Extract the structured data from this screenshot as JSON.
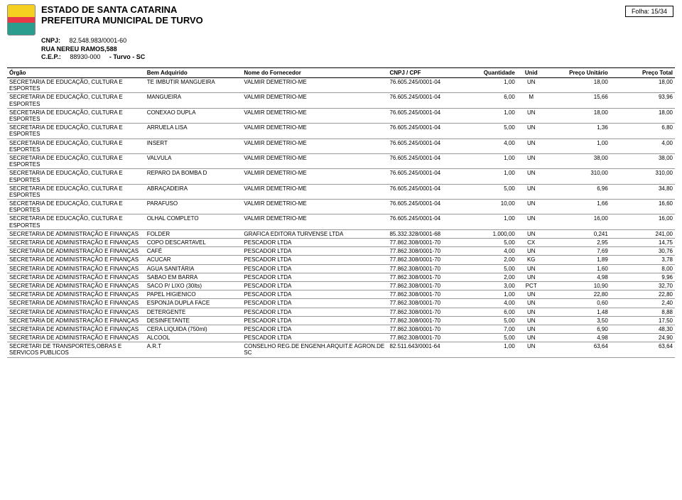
{
  "header": {
    "estado": "ESTADO DE SANTA CATARINA",
    "prefeitura": "PREFEITURA MUNICIPAL DE TURVO",
    "cnpj_label": "CNPJ:",
    "cnpj": "82.548.983/0001-60",
    "rua": "RUA NEREU RAMOS,588",
    "cep_label": "C.E.P.:",
    "cep": "88930-000",
    "cidade": "- Turvo - SC",
    "folha_label": "Folha:",
    "folha": "15/34"
  },
  "columns": {
    "orgao": "Órgão",
    "bem": "Bem Adquirido",
    "fornecedor": "Nome do Fornecedor",
    "cnpj": "CNPJ / CPF",
    "qtd": "Quantidade",
    "unid": "Unid",
    "pu": "Preço Unitário",
    "pt": "Preço Total"
  },
  "rows": [
    {
      "orgao": "SECRETARIA DE EDUCAÇÃO, CULTURA E ESPORTES",
      "bem": "TE IMBUTIR MANGUEIRA",
      "forn": "VALMIR DEMETRIO-ME",
      "cnpj": "76.605.245/0001-04",
      "qtd": "1,00",
      "unid": "UN",
      "pu": "18,00",
      "pt": "18,00"
    },
    {
      "orgao": "SECRETARIA DE EDUCAÇÃO, CULTURA E ESPORTES",
      "bem": "MANGUEIRA",
      "forn": "VALMIR DEMETRIO-ME",
      "cnpj": "76.605.245/0001-04",
      "qtd": "6,00",
      "unid": "M",
      "pu": "15,66",
      "pt": "93,96"
    },
    {
      "orgao": "SECRETARIA DE EDUCAÇÃO, CULTURA E ESPORTES",
      "bem": "CONEXAO DUPLA",
      "forn": "VALMIR DEMETRIO-ME",
      "cnpj": "76.605.245/0001-04",
      "qtd": "1,00",
      "unid": "UN",
      "pu": "18,00",
      "pt": "18,00"
    },
    {
      "orgao": "SECRETARIA DE EDUCAÇÃO, CULTURA E ESPORTES",
      "bem": "ARRUELA LISA",
      "forn": "VALMIR DEMETRIO-ME",
      "cnpj": "76.605.245/0001-04",
      "qtd": "5,00",
      "unid": "UN",
      "pu": "1,36",
      "pt": "6,80"
    },
    {
      "orgao": "SECRETARIA DE EDUCAÇÃO, CULTURA E ESPORTES",
      "bem": "INSERT",
      "forn": "VALMIR DEMETRIO-ME",
      "cnpj": "76.605.245/0001-04",
      "qtd": "4,00",
      "unid": "UN",
      "pu": "1,00",
      "pt": "4,00"
    },
    {
      "orgao": "SECRETARIA DE EDUCAÇÃO, CULTURA E ESPORTES",
      "bem": "VALVULA",
      "forn": "VALMIR DEMETRIO-ME",
      "cnpj": "76.605.245/0001-04",
      "qtd": "1,00",
      "unid": "UN",
      "pu": "38,00",
      "pt": "38,00"
    },
    {
      "orgao": "SECRETARIA DE EDUCAÇÃO, CULTURA E ESPORTES",
      "bem": "REPARO  DA BOMBA D",
      "forn": "VALMIR DEMETRIO-ME",
      "cnpj": "76.605.245/0001-04",
      "qtd": "1,00",
      "unid": "UN",
      "pu": "310,00",
      "pt": "310,00"
    },
    {
      "orgao": "SECRETARIA DE EDUCAÇÃO, CULTURA E ESPORTES",
      "bem": "ABRAÇADEIRA",
      "forn": "VALMIR DEMETRIO-ME",
      "cnpj": "76.605.245/0001-04",
      "qtd": "5,00",
      "unid": "UN",
      "pu": "6,96",
      "pt": "34,80"
    },
    {
      "orgao": "SECRETARIA DE EDUCAÇÃO, CULTURA E ESPORTES",
      "bem": "PARAFUSO",
      "forn": "VALMIR DEMETRIO-ME",
      "cnpj": "76.605.245/0001-04",
      "qtd": "10,00",
      "unid": "UN",
      "pu": "1,66",
      "pt": "16,60"
    },
    {
      "orgao": "SECRETARIA DE EDUCAÇÃO, CULTURA E ESPORTES",
      "bem": "OLHAL COMPLETO",
      "forn": "VALMIR DEMETRIO-ME",
      "cnpj": "76.605.245/0001-04",
      "qtd": "1,00",
      "unid": "UN",
      "pu": "16,00",
      "pt": "16,00"
    },
    {
      "orgao": "SECRETARIA DE ADMINISTRAÇÃO E FINANÇAS",
      "bem": "FOLDER",
      "forn": "GRAFICA EDITORA TURVENSE LTDA",
      "cnpj": "85.332.328/0001-68",
      "qtd": "1.000,00",
      "unid": "UN",
      "pu": "0,241",
      "pt": "241,00"
    },
    {
      "orgao": "SECRETARIA DE ADMINISTRAÇÃO E FINANÇAS",
      "bem": "COPO DESCARTAVEL",
      "forn": "PESCADOR LTDA",
      "cnpj": "77.862.308/0001-70",
      "qtd": "5,00",
      "unid": "CX",
      "pu": "2,95",
      "pt": "14,75"
    },
    {
      "orgao": "SECRETARIA DE ADMINISTRAÇÃO E FINANÇAS",
      "bem": "CAFÉ",
      "forn": "PESCADOR LTDA",
      "cnpj": "77.862.308/0001-70",
      "qtd": "4,00",
      "unid": "UN",
      "pu": "7,69",
      "pt": "30,76"
    },
    {
      "orgao": "SECRETARIA DE ADMINISTRAÇÃO E FINANÇAS",
      "bem": "ACUCAR",
      "forn": "PESCADOR LTDA",
      "cnpj": "77.862.308/0001-70",
      "qtd": "2,00",
      "unid": "KG",
      "pu": "1,89",
      "pt": "3,78"
    },
    {
      "orgao": "SECRETARIA DE ADMINISTRAÇÃO E FINANÇAS",
      "bem": "AGUA SANITÁRIA",
      "forn": "PESCADOR LTDA",
      "cnpj": "77.862.308/0001-70",
      "qtd": "5,00",
      "unid": "UN",
      "pu": "1,60",
      "pt": "8,00"
    },
    {
      "orgao": "SECRETARIA DE ADMINISTRAÇÃO E FINANÇAS",
      "bem": "SABAO EM BARRA",
      "forn": "PESCADOR LTDA",
      "cnpj": "77.862.308/0001-70",
      "qtd": "2,00",
      "unid": "UN",
      "pu": "4,98",
      "pt": "9,96"
    },
    {
      "orgao": "SECRETARIA DE ADMINISTRAÇÃO E FINANÇAS",
      "bem": "SACO P/ LIXO (30lts)",
      "forn": "PESCADOR LTDA",
      "cnpj": "77.862.308/0001-70",
      "qtd": "3,00",
      "unid": "PCT",
      "pu": "10,90",
      "pt": "32,70"
    },
    {
      "orgao": "SECRETARIA DE ADMINISTRAÇÃO E FINANÇAS",
      "bem": "PAPEL HIGIENICO",
      "forn": "PESCADOR LTDA",
      "cnpj": "77.862.308/0001-70",
      "qtd": "1,00",
      "unid": "UN",
      "pu": "22,80",
      "pt": "22,80"
    },
    {
      "orgao": "SECRETARIA DE ADMINISTRAÇÃO E FINANÇAS",
      "bem": "ESPONJA DUPLA FACE",
      "forn": "PESCADOR LTDA",
      "cnpj": "77.862.308/0001-70",
      "qtd": "4,00",
      "unid": "UN",
      "pu": "0,60",
      "pt": "2,40"
    },
    {
      "orgao": "SECRETARIA DE ADMINISTRAÇÃO E FINANÇAS",
      "bem": "DETERGENTE",
      "forn": "PESCADOR LTDA",
      "cnpj": "77.862.308/0001-70",
      "qtd": "6,00",
      "unid": "UN",
      "pu": "1,48",
      "pt": "8,88"
    },
    {
      "orgao": "SECRETARIA DE ADMINISTRAÇÃO E FINANÇAS",
      "bem": "DESINFETANTE",
      "forn": "PESCADOR LTDA",
      "cnpj": "77.862.308/0001-70",
      "qtd": "5,00",
      "unid": "UN",
      "pu": "3,50",
      "pt": "17,50"
    },
    {
      "orgao": "SECRETARIA DE ADMINISTRAÇÃO E FINANÇAS",
      "bem": "CERA LIQUIDA (750ml)",
      "forn": "PESCADOR LTDA",
      "cnpj": "77.862.308/0001-70",
      "qtd": "7,00",
      "unid": "UN",
      "pu": "6,90",
      "pt": "48,30"
    },
    {
      "orgao": "SECRETARIA DE ADMINISTRAÇÃO E FINANÇAS",
      "bem": "ALCOOL",
      "forn": "PESCADOR LTDA",
      "cnpj": "77.862.308/0001-70",
      "qtd": "5,00",
      "unid": "UN",
      "pu": "4,98",
      "pt": "24,90"
    },
    {
      "orgao": "SECRETARI DE TRANSPORTES,OBRAS E SERVICOS PUBLICOS",
      "bem": "A.R.T",
      "forn": "CONSELHO REG.DE ENGENH.ARQUIT.E AGRON.DE SC",
      "cnpj": "82.511.643/0001-64",
      "qtd": "1,00",
      "unid": "UN",
      "pu": "63,64",
      "pt": "63,64"
    }
  ]
}
